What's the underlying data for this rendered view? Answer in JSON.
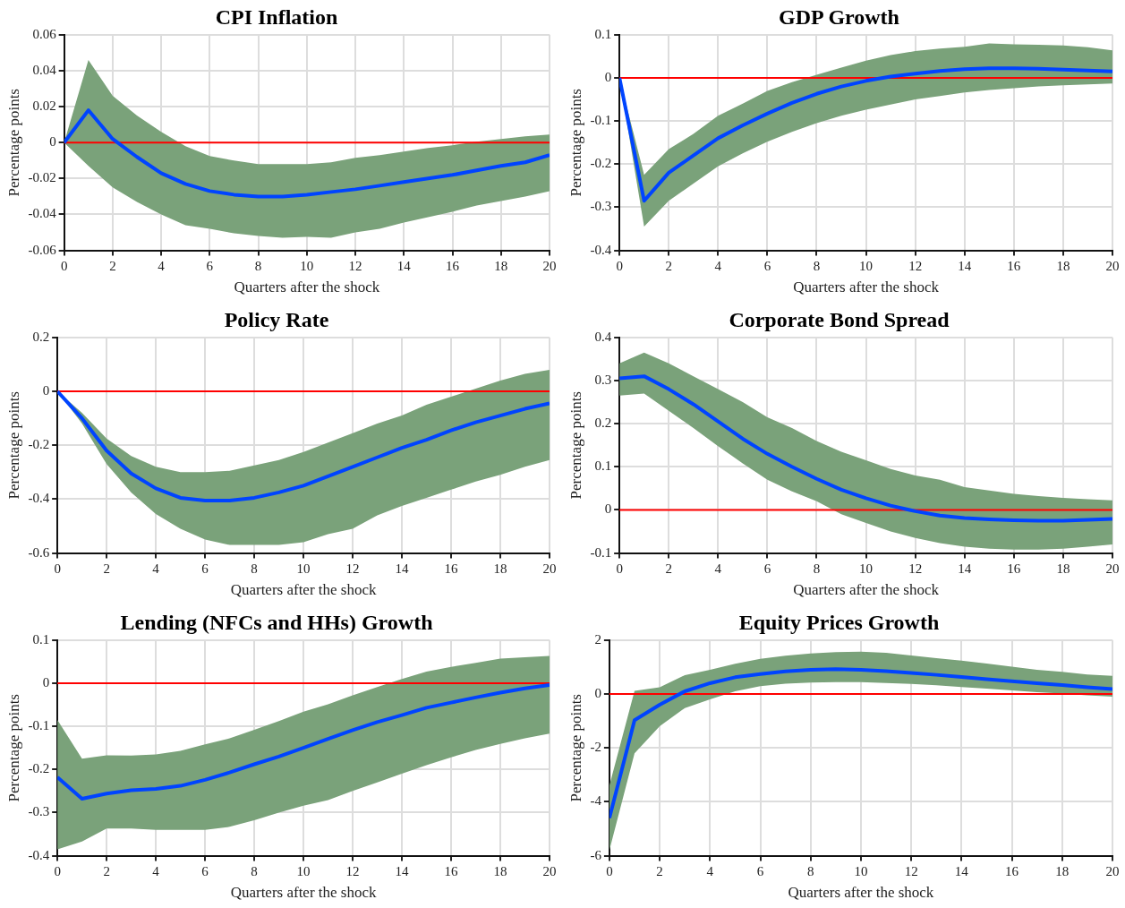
{
  "chart_data": [
    {
      "type": "line",
      "title": "CPI Inflation",
      "xlabel": "Quarters after the shock",
      "ylabel": "Percentage points",
      "x": [
        0,
        1,
        2,
        3,
        4,
        5,
        6,
        7,
        8,
        9,
        10,
        11,
        12,
        13,
        14,
        15,
        16,
        17,
        18,
        19,
        20
      ],
      "xlim": [
        0,
        20
      ],
      "xticks": [
        0,
        2,
        4,
        6,
        8,
        10,
        12,
        14,
        16,
        18,
        20
      ],
      "ylim": [
        -0.06,
        0.06
      ],
      "yticks": [
        -0.06,
        -0.04,
        -0.02,
        0,
        0.02,
        0.04,
        0.06
      ],
      "grid": true,
      "ref_lines": [
        {
          "axis": "y",
          "value": 0,
          "color": "#ff0000"
        }
      ],
      "series": [
        {
          "color": "#0044ff",
          "values": [
            0,
            0.018,
            0.002,
            -0.008,
            -0.017,
            -0.023,
            -0.027,
            -0.029,
            -0.03,
            -0.03,
            -0.029,
            -0.0275,
            -0.026,
            -0.024,
            -0.022,
            -0.02,
            -0.018,
            -0.0155,
            -0.013,
            -0.011,
            -0.007
          ],
          "upper": [
            0,
            0.046,
            0.026,
            0.015,
            0.006,
            -0.002,
            -0.0075,
            -0.01,
            -0.012,
            -0.012,
            -0.012,
            -0.011,
            -0.0085,
            -0.007,
            -0.005,
            -0.003,
            -0.0015,
            0.0005,
            0.002,
            0.0035,
            0.0045
          ],
          "lower": [
            0,
            -0.013,
            -0.025,
            -0.033,
            -0.04,
            -0.046,
            -0.048,
            -0.0505,
            -0.052,
            -0.053,
            -0.0525,
            -0.053,
            -0.05,
            -0.048,
            -0.0445,
            -0.0415,
            -0.0385,
            -0.035,
            -0.0325,
            -0.03,
            -0.027
          ]
        }
      ]
    },
    {
      "type": "line",
      "title": "GDP Growth",
      "xlabel": "Quarters after the shock",
      "ylabel": "Percentage points",
      "x": [
        0,
        1,
        2,
        3,
        4,
        5,
        6,
        7,
        8,
        9,
        10,
        11,
        12,
        13,
        14,
        15,
        16,
        17,
        18,
        19,
        20
      ],
      "xlim": [
        0,
        20
      ],
      "xticks": [
        0,
        2,
        4,
        6,
        8,
        10,
        12,
        14,
        16,
        18,
        20
      ],
      "ylim": [
        -0.4,
        0.1
      ],
      "yticks": [
        -0.4,
        -0.3,
        -0.2,
        -0.1,
        0,
        0.1
      ],
      "grid": true,
      "ref_lines": [
        {
          "axis": "y",
          "value": 0,
          "color": "#ff0000"
        }
      ],
      "series": [
        {
          "color": "#0044ff",
          "values": [
            0,
            -0.285,
            -0.22,
            -0.18,
            -0.14,
            -0.11,
            -0.083,
            -0.058,
            -0.037,
            -0.02,
            -0.007,
            0.003,
            0.01,
            0.016,
            0.02,
            0.022,
            0.022,
            0.021,
            0.019,
            0.017,
            0.015
          ],
          "upper": [
            0,
            -0.225,
            -0.165,
            -0.13,
            -0.088,
            -0.06,
            -0.03,
            -0.01,
            0.007,
            0.024,
            0.04,
            0.053,
            0.062,
            0.068,
            0.072,
            0.08,
            0.078,
            0.077,
            0.075,
            0.071,
            0.064
          ],
          "lower": [
            0,
            -0.345,
            -0.285,
            -0.245,
            -0.205,
            -0.175,
            -0.148,
            -0.125,
            -0.105,
            -0.088,
            -0.074,
            -0.062,
            -0.05,
            -0.042,
            -0.034,
            -0.028,
            -0.024,
            -0.02,
            -0.017,
            -0.015,
            -0.013
          ]
        }
      ]
    },
    {
      "type": "line",
      "title": "Policy Rate",
      "xlabel": "Quarters after the shock",
      "ylabel": "Percentage points",
      "x": [
        0,
        1,
        2,
        3,
        4,
        5,
        6,
        7,
        8,
        9,
        10,
        11,
        12,
        13,
        14,
        15,
        16,
        17,
        18,
        19,
        20
      ],
      "xlim": [
        0,
        20
      ],
      "xticks": [
        0,
        2,
        4,
        6,
        8,
        10,
        12,
        14,
        16,
        18,
        20
      ],
      "ylim": [
        -0.6,
        0.2
      ],
      "yticks": [
        -0.6,
        -0.4,
        -0.2,
        0,
        0.2
      ],
      "grid": true,
      "ref_lines": [
        {
          "axis": "y",
          "value": 0,
          "color": "#ff0000"
        }
      ],
      "series": [
        {
          "color": "#0044ff",
          "values": [
            0,
            -0.1,
            -0.22,
            -0.305,
            -0.36,
            -0.395,
            -0.405,
            -0.405,
            -0.395,
            -0.375,
            -0.35,
            -0.315,
            -0.28,
            -0.245,
            -0.21,
            -0.18,
            -0.145,
            -0.115,
            -0.09,
            -0.065,
            -0.045
          ],
          "upper": [
            0,
            -0.08,
            -0.175,
            -0.24,
            -0.28,
            -0.3,
            -0.3,
            -0.295,
            -0.275,
            -0.255,
            -0.225,
            -0.19,
            -0.155,
            -0.12,
            -0.09,
            -0.05,
            -0.02,
            0.01,
            0.04,
            0.065,
            0.08
          ],
          "lower": [
            0,
            -0.12,
            -0.27,
            -0.375,
            -0.455,
            -0.51,
            -0.55,
            -0.57,
            -0.57,
            -0.57,
            -0.56,
            -0.53,
            -0.51,
            -0.46,
            -0.425,
            -0.395,
            -0.365,
            -0.335,
            -0.31,
            -0.28,
            -0.255
          ]
        }
      ]
    },
    {
      "type": "line",
      "title": "Corporate Bond Spread",
      "xlabel": "Quarters after the shock",
      "ylabel": "Percentage points",
      "x": [
        0,
        1,
        2,
        3,
        4,
        5,
        6,
        7,
        8,
        9,
        10,
        11,
        12,
        13,
        14,
        15,
        16,
        17,
        18,
        19,
        20
      ],
      "xlim": [
        0,
        20
      ],
      "xticks": [
        0,
        2,
        4,
        6,
        8,
        10,
        12,
        14,
        16,
        18,
        20
      ],
      "ylim": [
        -0.1,
        0.4
      ],
      "yticks": [
        -0.1,
        0,
        0.1,
        0.2,
        0.3,
        0.4
      ],
      "grid": true,
      "ref_lines": [
        {
          "axis": "y",
          "value": 0,
          "color": "#ff0000"
        }
      ],
      "series": [
        {
          "color": "#0044ff",
          "values": [
            0.305,
            0.31,
            0.28,
            0.245,
            0.205,
            0.165,
            0.13,
            0.1,
            0.072,
            0.047,
            0.027,
            0.01,
            -0.003,
            -0.013,
            -0.019,
            -0.022,
            -0.024,
            -0.025,
            -0.025,
            -0.023,
            -0.021
          ],
          "upper": [
            0.34,
            0.365,
            0.34,
            0.31,
            0.28,
            0.25,
            0.215,
            0.19,
            0.16,
            0.135,
            0.115,
            0.095,
            0.08,
            0.07,
            0.053,
            0.045,
            0.037,
            0.032,
            0.028,
            0.025,
            0.022
          ],
          "lower": [
            0.265,
            0.27,
            0.23,
            0.19,
            0.148,
            0.108,
            0.07,
            0.043,
            0.02,
            -0.01,
            -0.03,
            -0.05,
            -0.065,
            -0.077,
            -0.085,
            -0.09,
            -0.092,
            -0.092,
            -0.09,
            -0.085,
            -0.08
          ]
        }
      ]
    },
    {
      "type": "line",
      "title": "Lending (NFCs and HHs) Growth",
      "xlabel": "Quarters after the shock",
      "ylabel": "Percentage points",
      "x": [
        0,
        1,
        2,
        3,
        4,
        5,
        6,
        7,
        8,
        9,
        10,
        11,
        12,
        13,
        14,
        15,
        16,
        17,
        18,
        19,
        20
      ],
      "xlim": [
        0,
        20
      ],
      "xticks": [
        0,
        2,
        4,
        6,
        8,
        10,
        12,
        14,
        16,
        18,
        20
      ],
      "ylim": [
        -0.4,
        0.1
      ],
      "yticks": [
        -0.4,
        -0.3,
        -0.2,
        -0.1,
        0,
        0.1
      ],
      "grid": true,
      "ref_lines": [
        {
          "axis": "y",
          "value": 0,
          "color": "#ff0000"
        }
      ],
      "series": [
        {
          "color": "#0044ff",
          "values": [
            -0.218,
            -0.268,
            -0.256,
            -0.248,
            -0.245,
            -0.238,
            -0.224,
            -0.207,
            -0.188,
            -0.17,
            -0.15,
            -0.129,
            -0.109,
            -0.09,
            -0.074,
            -0.057,
            -0.045,
            -0.033,
            -0.022,
            -0.012,
            -0.004
          ],
          "upper": [
            -0.085,
            -0.175,
            -0.167,
            -0.168,
            -0.165,
            -0.157,
            -0.142,
            -0.128,
            -0.108,
            -0.088,
            -0.066,
            -0.049,
            -0.028,
            -0.009,
            0.01,
            0.027,
            0.038,
            0.047,
            0.057,
            0.06,
            0.063
          ],
          "lower": [
            -0.385,
            -0.367,
            -0.337,
            -0.337,
            -0.34,
            -0.34,
            -0.34,
            -0.333,
            -0.318,
            -0.3,
            -0.284,
            -0.271,
            -0.25,
            -0.23,
            -0.21,
            -0.19,
            -0.172,
            -0.155,
            -0.141,
            -0.128,
            -0.117
          ]
        }
      ]
    },
    {
      "type": "line",
      "title": "Equity Prices Growth",
      "xlabel": "Quarters after the shock",
      "ylabel": "Percentage points",
      "x": [
        0,
        1,
        2,
        3,
        4,
        5,
        6,
        7,
        8,
        9,
        10,
        11,
        12,
        13,
        14,
        15,
        16,
        17,
        18,
        19,
        20
      ],
      "xlim": [
        0,
        20
      ],
      "xticks": [
        0,
        2,
        4,
        6,
        8,
        10,
        12,
        14,
        16,
        18,
        20
      ],
      "ylim": [
        -6,
        2
      ],
      "yticks": [
        -6,
        -4,
        -2,
        0,
        2
      ],
      "grid": true,
      "ref_lines": [
        {
          "axis": "y",
          "value": 0,
          "color": "#ff0000"
        }
      ],
      "series": [
        {
          "color": "#0044ff",
          "values": [
            -4.6,
            -0.97,
            -0.4,
            0.1,
            0.4,
            0.62,
            0.74,
            0.84,
            0.9,
            0.92,
            0.9,
            0.85,
            0.78,
            0.71,
            0.63,
            0.55,
            0.47,
            0.4,
            0.33,
            0.25,
            0.18
          ],
          "upper": [
            -3.4,
            0.12,
            0.25,
            0.7,
            0.9,
            1.12,
            1.3,
            1.42,
            1.5,
            1.55,
            1.57,
            1.53,
            1.43,
            1.33,
            1.24,
            1.13,
            1.01,
            0.9,
            0.82,
            0.72,
            0.67
          ],
          "lower": [
            -5.8,
            -2.2,
            -1.2,
            -0.52,
            -0.2,
            0.1,
            0.29,
            0.38,
            0.42,
            0.44,
            0.44,
            0.41,
            0.37,
            0.32,
            0.26,
            0.2,
            0.13,
            0.07,
            0.02,
            -0.05,
            -0.1
          ]
        }
      ]
    }
  ]
}
